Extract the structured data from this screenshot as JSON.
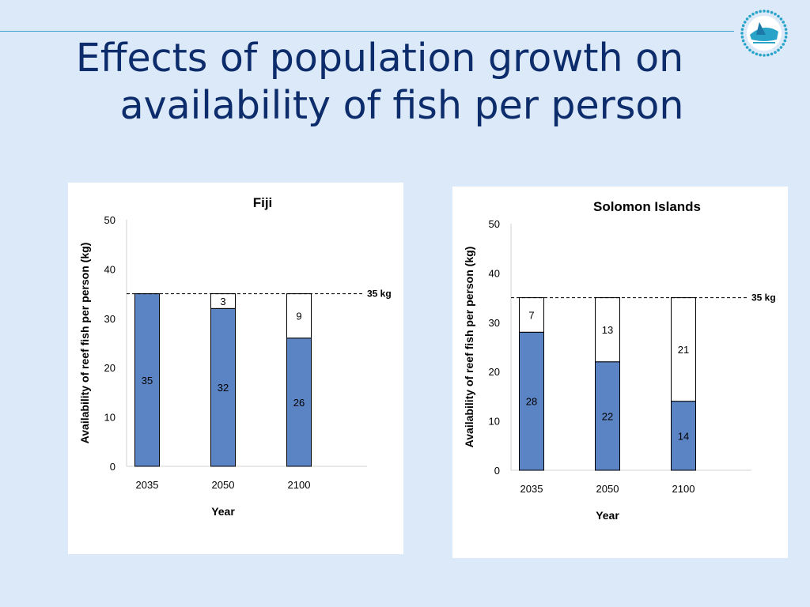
{
  "slide": {
    "title_line1": "Effects of population growth on",
    "title_line2": "availability of fish per person"
  },
  "logo": {
    "icon": "sail-boat-logo-icon"
  },
  "colors": {
    "background": "#dce9f8",
    "title": "#0d2c6b",
    "available_bar": "#5b84c4",
    "shortfall_bar": "#ffffff",
    "rule": "#3aa0c8"
  },
  "chart_data": [
    {
      "type": "bar",
      "stacked": true,
      "title": "Fiji",
      "xlabel": "Year",
      "ylabel": "Availability of reef fish per person (kg)",
      "categories": [
        "2035",
        "2050",
        "2100"
      ],
      "ylim": [
        0,
        50
      ],
      "yticks": [
        0,
        10,
        20,
        30,
        40,
        50
      ],
      "series": [
        {
          "values": [
            35,
            32,
            26
          ],
          "color": "#5b84c4"
        },
        {
          "values": [
            null,
            3,
            9
          ],
          "color": "#ffffff"
        }
      ],
      "reference_line": {
        "value": 35,
        "label": "35 kg",
        "style": "dashed"
      },
      "grid": false,
      "legend": "none"
    },
    {
      "type": "bar",
      "stacked": true,
      "title": "Solomon Islands",
      "xlabel": "Year",
      "ylabel": "Availability of reef fish per person (kg)",
      "categories": [
        "2035",
        "2050",
        "2100"
      ],
      "ylim": [
        0,
        50
      ],
      "yticks": [
        0,
        10,
        20,
        30,
        40,
        50
      ],
      "series": [
        {
          "values": [
            28,
            22,
            14
          ],
          "color": "#5b84c4"
        },
        {
          "values": [
            7,
            13,
            21
          ],
          "color": "#ffffff"
        }
      ],
      "reference_line": {
        "value": 35,
        "label": "35 kg",
        "style": "dashed"
      },
      "grid": false,
      "legend": "none"
    }
  ]
}
